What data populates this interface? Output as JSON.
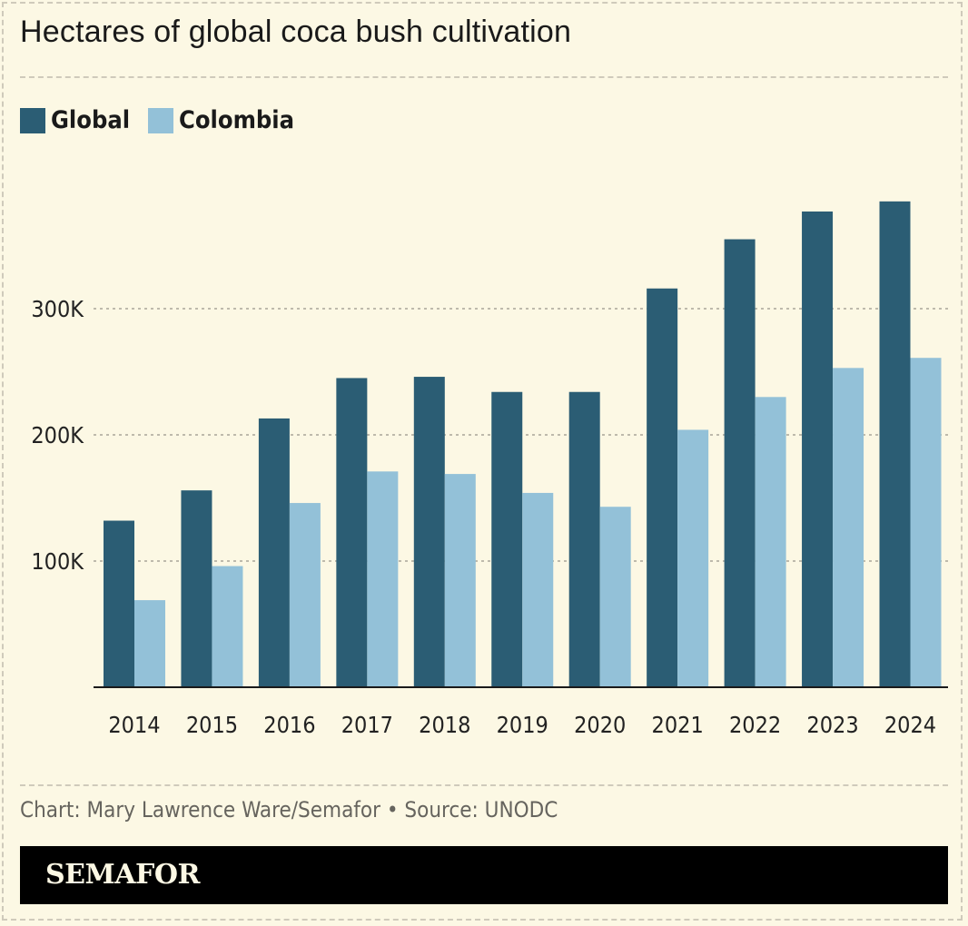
{
  "header": {
    "title": "Hectares of global coca bush cultivation"
  },
  "legend": [
    {
      "label": "Global",
      "color": "#2b5d74"
    },
    {
      "label": "Colombia",
      "color": "#93c1d8"
    }
  ],
  "footer": {
    "credit": "Chart: Mary Lawrence Ware/Semafor • Source: UNODC",
    "brand": "SEMAFOR"
  },
  "chart_data": {
    "type": "bar",
    "categories": [
      "2014",
      "2015",
      "2016",
      "2017",
      "2018",
      "2019",
      "2020",
      "2021",
      "2022",
      "2023",
      "2024"
    ],
    "series": [
      {
        "name": "Global",
        "color": "#2b5d74",
        "values": [
          132000,
          156000,
          213000,
          245000,
          246000,
          234000,
          234000,
          316000,
          355000,
          377000,
          385000
        ]
      },
      {
        "name": "Colombia",
        "color": "#93c1d8",
        "values": [
          69000,
          96000,
          146000,
          171000,
          169000,
          154000,
          143000,
          204000,
          230000,
          253000,
          261000
        ]
      }
    ],
    "yticks": [
      {
        "value": 100000,
        "label": "100K"
      },
      {
        "value": 200000,
        "label": "200K"
      },
      {
        "value": 300000,
        "label": "300K"
      }
    ],
    "ylim": [
      0,
      400000
    ],
    "grid": true,
    "legend_position": "top-left"
  }
}
